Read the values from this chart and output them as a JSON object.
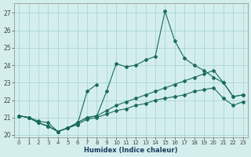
{
  "xlabel": "Humidex (Indice chaleur)",
  "xlim": [
    -0.5,
    23.5
  ],
  "ylim": [
    19.85,
    27.55
  ],
  "yticks": [
    20,
    21,
    22,
    23,
    24,
    25,
    26,
    27
  ],
  "xticks": [
    0,
    1,
    2,
    3,
    4,
    5,
    6,
    7,
    8,
    9,
    10,
    11,
    12,
    13,
    14,
    15,
    16,
    17,
    18,
    19,
    20,
    21,
    22,
    23
  ],
  "bg_color": "#d4eeee",
  "grid_color": "#aad4d4",
  "line_color": "#1a6b5a",
  "curve1_x": [
    0,
    1,
    2,
    3,
    4,
    5,
    6,
    7,
    8,
    9,
    10,
    11,
    12,
    13,
    14,
    15,
    16,
    17,
    18,
    19,
    20,
    21,
    22,
    23
  ],
  "curve1_y": [
    21.1,
    21.0,
    20.8,
    20.7,
    20.2,
    20.4,
    20.7,
    21.0,
    21.1,
    22.5,
    24.1,
    23.9,
    24.0,
    24.3,
    24.5,
    27.1,
    25.4,
    24.4,
    24.0,
    23.7,
    23.3,
    23.0,
    22.2,
    22.3
  ],
  "curve2_x": [
    0,
    1,
    2,
    3,
    4,
    5,
    6,
    7,
    8
  ],
  "curve2_y": [
    21.1,
    21.0,
    20.7,
    20.5,
    20.2,
    20.4,
    20.6,
    22.5,
    22.9
  ],
  "curve3_x": [
    0,
    1,
    2,
    3,
    4,
    5,
    6,
    7,
    8,
    9,
    10,
    11,
    12,
    13,
    14,
    15,
    16,
    17,
    18,
    19,
    20,
    21,
    22,
    23
  ],
  "curve3_y": [
    21.1,
    21.0,
    20.7,
    20.5,
    20.2,
    20.4,
    20.7,
    21.0,
    21.1,
    21.4,
    21.7,
    21.9,
    22.1,
    22.3,
    22.5,
    22.7,
    22.9,
    23.1,
    23.3,
    23.5,
    23.7,
    23.0,
    22.2,
    22.3
  ],
  "curve4_x": [
    0,
    1,
    2,
    3,
    4,
    5,
    6,
    7,
    8,
    9,
    10,
    11,
    12,
    13,
    14,
    15,
    16,
    17,
    18,
    19,
    20,
    21,
    22,
    23
  ],
  "curve4_y": [
    21.1,
    21.0,
    20.7,
    20.5,
    20.2,
    20.4,
    20.6,
    20.9,
    21.0,
    21.2,
    21.4,
    21.5,
    21.7,
    21.8,
    22.0,
    22.1,
    22.2,
    22.3,
    22.5,
    22.6,
    22.7,
    22.1,
    21.7,
    21.9
  ]
}
